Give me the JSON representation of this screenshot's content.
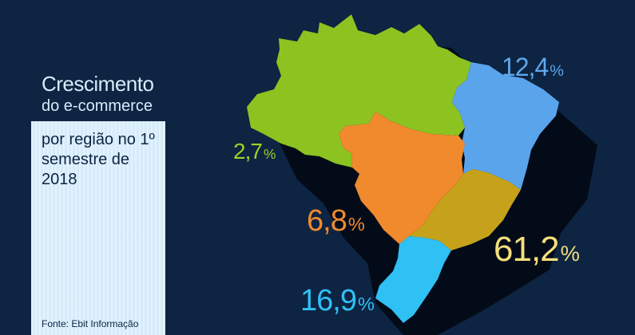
{
  "title": {
    "line1": "Crescimento",
    "line2": "do e-commerce",
    "line3": "por região no 1º semestre de 2018"
  },
  "source": "Fonte: Ebit Informação",
  "regions": {
    "norte": {
      "value": "2,7",
      "unit": "%",
      "color": "#8cc320"
    },
    "nordeste": {
      "value": "12,4",
      "unit": "%",
      "color": "#5aa4ec"
    },
    "centro_oeste": {
      "value": "6,8",
      "unit": "%",
      "color": "#f08a2c"
    },
    "sudeste": {
      "value": "61,2",
      "unit": "%",
      "color": "#c6a21a"
    },
    "sul": {
      "value": "16,9",
      "unit": "%",
      "color": "#2fc0f4"
    }
  },
  "colors": {
    "background": "#0d2442",
    "shadow": "#030b18",
    "panel": "#d6ecfb"
  }
}
